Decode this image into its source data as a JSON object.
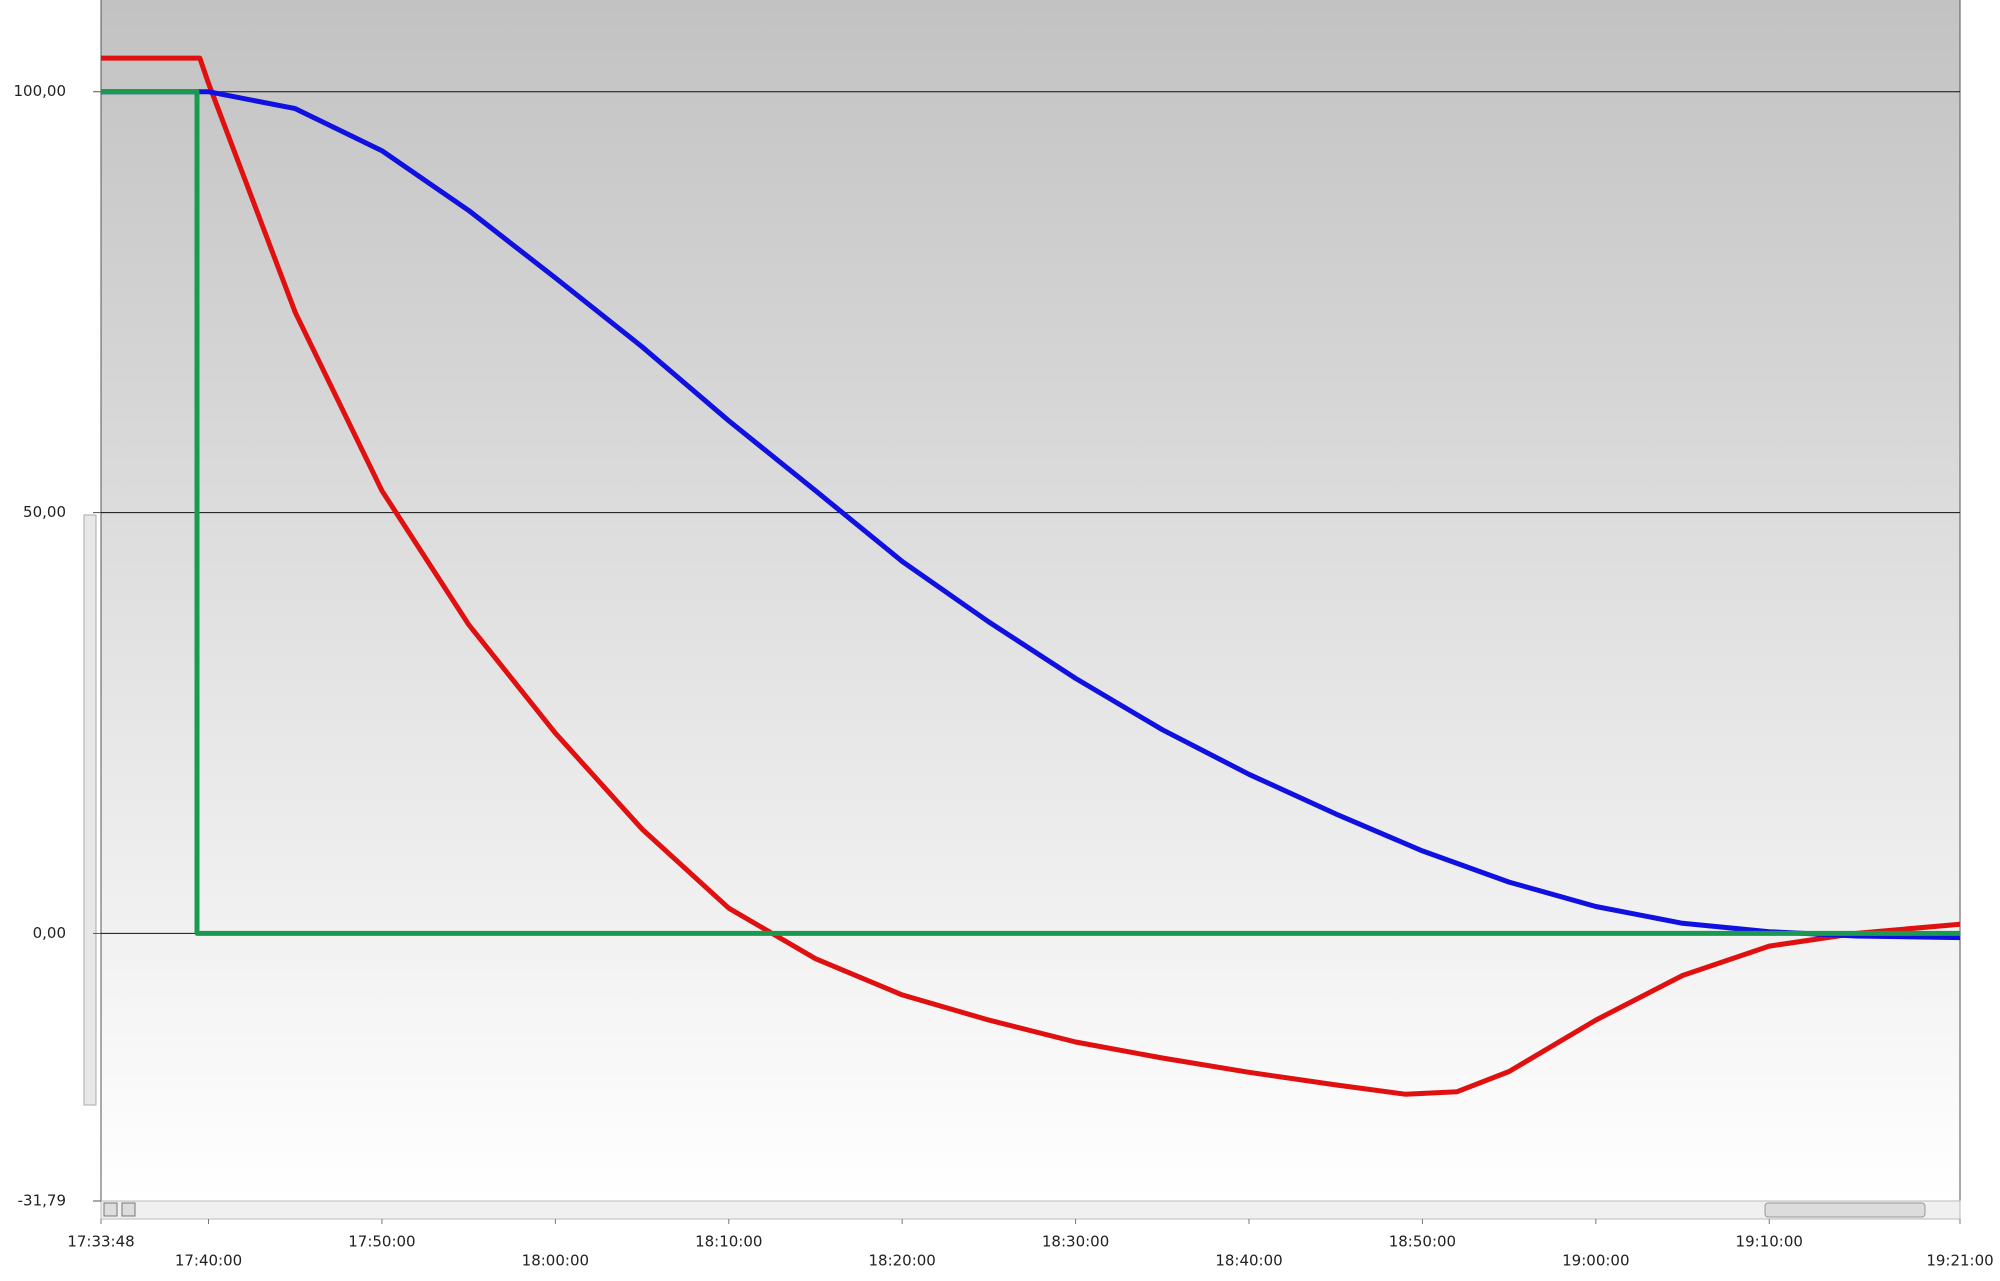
{
  "chart_data": {
    "type": "line",
    "ylim": [
      -31.79,
      110.9
    ],
    "yticks": [
      {
        "value": -31.79,
        "label": "-31,79"
      },
      {
        "value": 0,
        "label": "0,00"
      },
      {
        "value": 50,
        "label": "50,00"
      },
      {
        "value": 100,
        "label": "100,00"
      }
    ],
    "xlim": [
      "17:33:48",
      "19:21:00"
    ],
    "xticks": [
      "17:33:48",
      "17:40:00",
      "17:50:00",
      "18:00:00",
      "18:10:00",
      "18:20:00",
      "18:30:00",
      "18:40:00",
      "18:50:00",
      "19:00:00",
      "19:10:00",
      "19:21:00"
    ],
    "grid": true,
    "series": [
      {
        "color": "#e01010",
        "x": [
          "17:33:48",
          "17:39:30",
          "17:40:00",
          "17:45:00",
          "17:50:00",
          "17:55:00",
          "18:00:00",
          "18:05:00",
          "18:10:00",
          "18:15:00",
          "18:20:00",
          "18:25:00",
          "18:30:00",
          "18:35:00",
          "18:40:00",
          "18:45:00",
          "18:49:00",
          "18:52:00",
          "18:55:00",
          "19:00:00",
          "19:05:00",
          "19:10:00",
          "19:15:00",
          "19:21:00"
        ],
        "values": [
          104,
          104,
          101,
          73.8,
          52.6,
          36.7,
          23.8,
          12.4,
          3.0,
          -3.0,
          -7.3,
          -10.3,
          -12.9,
          -14.8,
          -16.5,
          -18.0,
          -19.1,
          -18.8,
          -16.4,
          -10.3,
          -5.0,
          -1.5,
          0,
          1.1
        ]
      },
      {
        "color": "#1010e0",
        "x": [
          "17:33:48",
          "17:40:00",
          "17:45:00",
          "17:50:00",
          "17:55:00",
          "18:00:00",
          "18:05:00",
          "18:10:00",
          "18:15:00",
          "18:20:00",
          "18:25:00",
          "18:30:00",
          "18:35:00",
          "18:40:00",
          "18:45:00",
          "18:50:00",
          "18:55:00",
          "19:00:00",
          "19:05:00",
          "19:10:00",
          "19:15:00",
          "19:21:00"
        ],
        "values": [
          100,
          100,
          98,
          93,
          85.9,
          77.9,
          69.7,
          60.9,
          52.6,
          44.2,
          37.0,
          30.3,
          24.2,
          18.9,
          14.2,
          9.8,
          6.1,
          3.2,
          1.2,
          0.2,
          -0.3,
          -0.5
        ]
      },
      {
        "color": "#1a9a50",
        "x": [
          "17:33:48",
          "17:39:20",
          "17:39:20",
          "19:21:00"
        ],
        "values": [
          100,
          100,
          0,
          0
        ]
      }
    ]
  }
}
